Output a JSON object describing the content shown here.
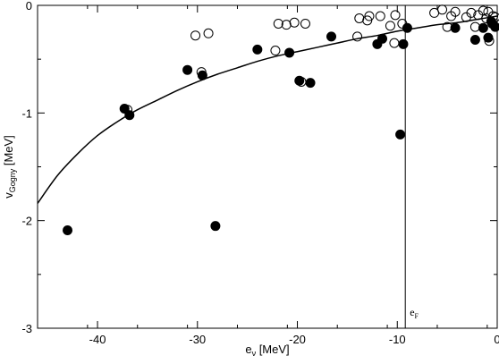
{
  "chart_data": {
    "type": "scatter",
    "title": "",
    "xlabel": {
      "main": "e",
      "sub": "ν",
      "rest": " [MeV]"
    },
    "ylabel": {
      "main": "v",
      "sub": "Gogny",
      "rest": " [MeV]"
    },
    "xlim": [
      -46,
      0
    ],
    "ylim": [
      -3,
      0
    ],
    "xticks": [
      -40,
      -30,
      -20,
      -10,
      0
    ],
    "yticks": [
      -3,
      -2,
      -1,
      0
    ],
    "xtick_labels": [
      "-40",
      "-30",
      "-20",
      "-10",
      "0"
    ],
    "ytick_labels": [
      "-3",
      "-2",
      "-1",
      "0"
    ],
    "grid": false,
    "legend": "none",
    "fermi_line": {
      "x": -9.2,
      "label_main": "e",
      "label_sub": "F"
    },
    "curve": {
      "x": [
        -46,
        -44,
        -42,
        -40,
        -38,
        -36,
        -34,
        -32,
        -30,
        -28,
        -26,
        -24,
        -22,
        -20,
        -18,
        -16,
        -14,
        -12,
        -10,
        -8,
        -6,
        -4,
        -2,
        0
      ],
      "y": [
        -1.84,
        -1.58,
        -1.38,
        -1.21,
        -1.08,
        -0.97,
        -0.88,
        -0.79,
        -0.71,
        -0.64,
        -0.58,
        -0.52,
        -0.47,
        -0.43,
        -0.39,
        -0.35,
        -0.31,
        -0.28,
        -0.24,
        -0.21,
        -0.18,
        -0.16,
        -0.13,
        -0.1
      ]
    },
    "series": [
      {
        "marker": "filled",
        "color": "#000000",
        "x": [
          -43.0,
          -37.3,
          -36.8,
          -31.0,
          -29.5,
          -28.2,
          -24.0,
          -20.8,
          -19.8,
          -18.7,
          -16.6,
          -12.0,
          -11.5,
          -9.7,
          -9.4,
          -9.0,
          -4.2,
          -2.2,
          -1.4,
          -0.9,
          -0.6,
          -0.5,
          -0.2
        ],
        "y": [
          -2.09,
          -0.96,
          -1.02,
          -0.6,
          -0.65,
          -2.05,
          -0.41,
          -0.44,
          -0.7,
          -0.72,
          -0.29,
          -0.36,
          -0.31,
          -1.2,
          -0.36,
          -0.21,
          -0.21,
          -0.32,
          -0.21,
          -0.3,
          -0.15,
          -0.17,
          -0.2
        ]
      },
      {
        "marker": "open",
        "color": "#000000",
        "x": [
          -37.0,
          -30.2,
          -29.6,
          -28.9,
          -22.2,
          -21.9,
          -21.1,
          -20.3,
          -19.6,
          -19.2,
          -14.0,
          -13.8,
          -13.0,
          -12.8,
          -11.7,
          -10.7,
          -10.3,
          -10.2,
          -9.5,
          -6.3,
          -5.5,
          -5.0,
          -4.6,
          -4.2,
          -3.1,
          -2.6,
          -2.2,
          -1.9,
          -1.4,
          -1.1,
          -0.9,
          -0.8,
          -0.4,
          -0.2
        ],
        "y": [
          -0.97,
          -0.28,
          -0.62,
          -0.26,
          -0.42,
          -0.17,
          -0.18,
          -0.16,
          -0.71,
          -0.17,
          -0.29,
          -0.12,
          -0.14,
          -0.1,
          -0.1,
          -0.19,
          -0.35,
          -0.09,
          -0.17,
          -0.07,
          -0.04,
          -0.2,
          -0.1,
          -0.06,
          -0.11,
          -0.07,
          -0.2,
          -0.09,
          -0.05,
          -0.12,
          -0.06,
          -0.33,
          -0.1,
          -0.11
        ]
      }
    ]
  }
}
